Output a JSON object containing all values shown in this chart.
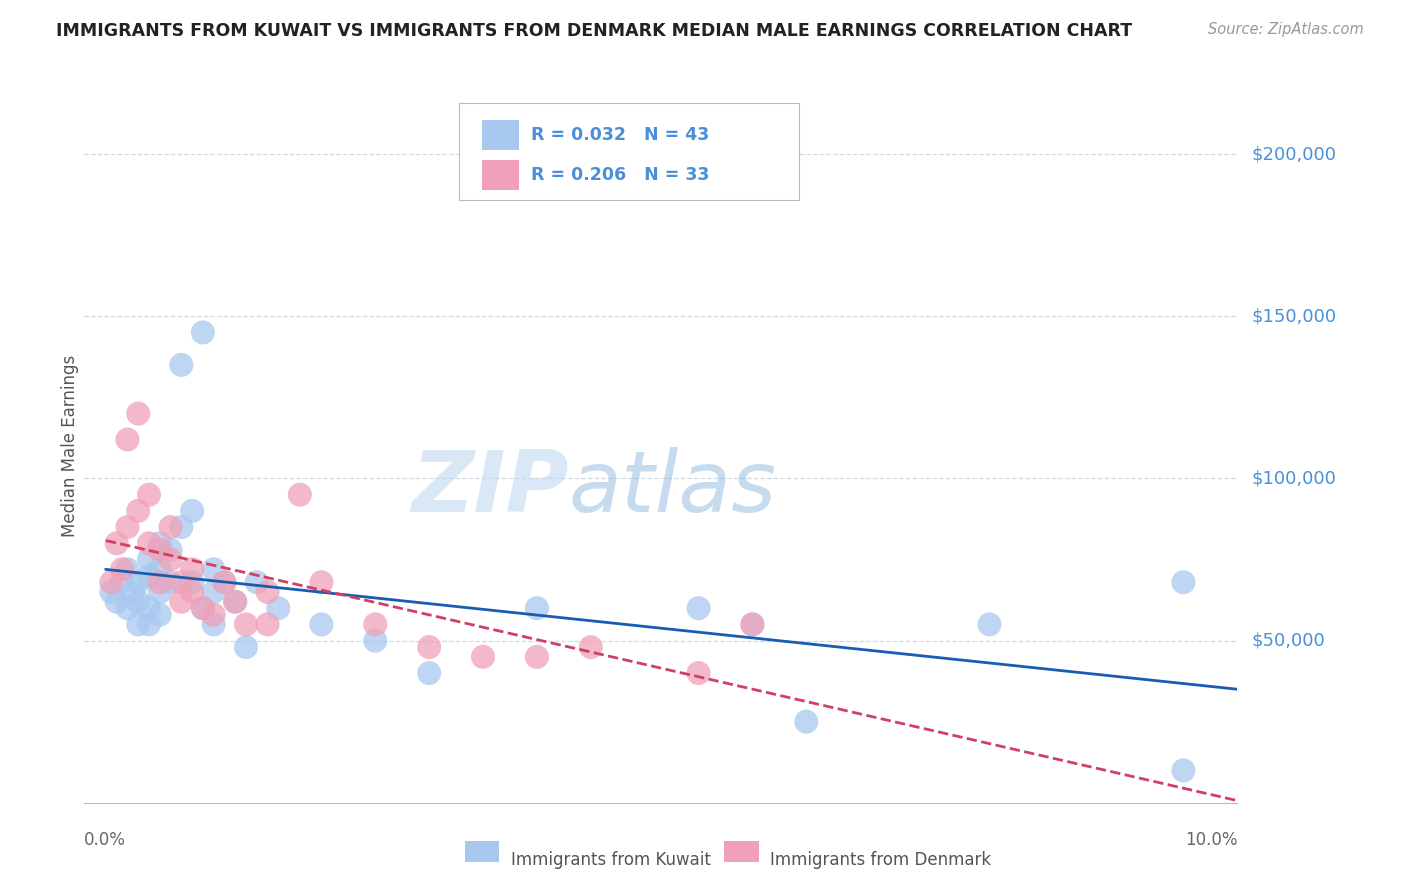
{
  "title": "IMMIGRANTS FROM KUWAIT VS IMMIGRANTS FROM DENMARK MEDIAN MALE EARNINGS CORRELATION CHART",
  "source": "Source: ZipAtlas.com",
  "ylabel": "Median Male Earnings",
  "ylim": [
    0,
    220000
  ],
  "xlim": [
    -0.002,
    0.105
  ],
  "color_kuwait": "#A8C8F0",
  "color_denmark": "#F0A0B8",
  "color_line_kuwait": "#1A5CB0",
  "color_line_denmark": "#D04060",
  "color_ytick_labels": "#4A90D9",
  "color_grid": "#D0D8E0",
  "watermark_color": "#C8DCF0",
  "kuwait_x": [
    0.0005,
    0.001,
    0.0015,
    0.002,
    0.002,
    0.0025,
    0.003,
    0.003,
    0.003,
    0.004,
    0.004,
    0.004,
    0.004,
    0.005,
    0.005,
    0.005,
    0.005,
    0.006,
    0.006,
    0.007,
    0.007,
    0.008,
    0.008,
    0.009,
    0.009,
    0.01,
    0.01,
    0.01,
    0.011,
    0.012,
    0.013,
    0.014,
    0.016,
    0.02,
    0.025,
    0.03,
    0.04,
    0.055,
    0.06,
    0.065,
    0.082,
    0.1,
    0.1
  ],
  "kuwait_y": [
    65000,
    62000,
    68000,
    72000,
    60000,
    65000,
    68000,
    62000,
    55000,
    75000,
    70000,
    60000,
    55000,
    80000,
    72000,
    65000,
    58000,
    78000,
    68000,
    85000,
    135000,
    90000,
    68000,
    145000,
    60000,
    72000,
    65000,
    55000,
    68000,
    62000,
    48000,
    68000,
    60000,
    55000,
    50000,
    40000,
    60000,
    60000,
    55000,
    25000,
    55000,
    68000,
    10000
  ],
  "denmark_x": [
    0.0005,
    0.001,
    0.0015,
    0.002,
    0.002,
    0.003,
    0.003,
    0.004,
    0.004,
    0.005,
    0.005,
    0.006,
    0.006,
    0.007,
    0.007,
    0.008,
    0.008,
    0.009,
    0.01,
    0.011,
    0.012,
    0.013,
    0.015,
    0.015,
    0.018,
    0.02,
    0.025,
    0.03,
    0.035,
    0.04,
    0.045,
    0.055,
    0.06
  ],
  "denmark_y": [
    68000,
    80000,
    72000,
    112000,
    85000,
    120000,
    90000,
    95000,
    80000,
    78000,
    68000,
    85000,
    75000,
    68000,
    62000,
    72000,
    65000,
    60000,
    58000,
    68000,
    62000,
    55000,
    65000,
    55000,
    95000,
    68000,
    55000,
    48000,
    45000,
    45000,
    48000,
    40000,
    55000
  ]
}
